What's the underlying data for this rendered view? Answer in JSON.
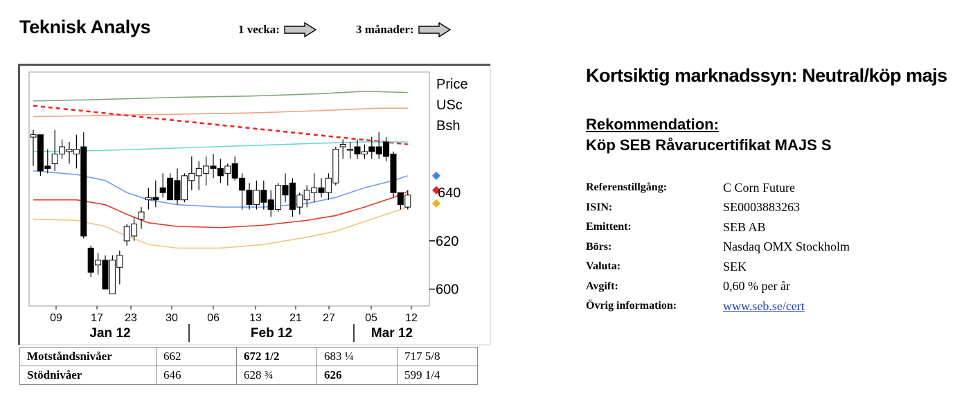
{
  "header": {
    "title": "Teknisk Analys",
    "period_1": "1 vecka:",
    "period_2": "3 månader:"
  },
  "chart_data": {
    "type": "candlestick",
    "unit_label": [
      "Price",
      "USc",
      "Bsh"
    ],
    "ylim": [
      593,
      690
    ],
    "y_ticks": [
      620,
      600
    ],
    "y_tick_overlap": "640",
    "x_ticks": [
      "09",
      "17",
      "23",
      "30",
      "06",
      "13",
      "21",
      "27",
      "05",
      "12"
    ],
    "x_months": [
      "Jan 12",
      "Feb 12",
      "Mar 12"
    ],
    "grid": false,
    "candles": [
      {
        "o": 663,
        "h": 666,
        "l": 651,
        "c": 664
      },
      {
        "o": 664,
        "h": 664,
        "l": 647,
        "c": 649
      },
      {
        "o": 651,
        "h": 658,
        "l": 648,
        "c": 650
      },
      {
        "o": 652,
        "h": 666,
        "l": 649,
        "c": 656
      },
      {
        "o": 656,
        "h": 662,
        "l": 654,
        "c": 659
      },
      {
        "o": 657,
        "h": 661,
        "l": 652,
        "c": 658
      },
      {
        "o": 656,
        "h": 664,
        "l": 650,
        "c": 658
      },
      {
        "o": 659,
        "h": 665,
        "l": 621,
        "c": 622
      },
      {
        "o": 617,
        "h": 618,
        "l": 605,
        "c": 607
      },
      {
        "o": 610,
        "h": 615,
        "l": 606,
        "c": 612
      },
      {
        "o": 612,
        "h": 614,
        "l": 600,
        "c": 600
      },
      {
        "o": 598,
        "h": 614,
        "l": 598,
        "c": 612
      },
      {
        "o": 609,
        "h": 616,
        "l": 602,
        "c": 614
      },
      {
        "o": 620,
        "h": 627,
        "l": 618,
        "c": 626
      },
      {
        "o": 622,
        "h": 630,
        "l": 620,
        "c": 627
      },
      {
        "o": 629,
        "h": 634,
        "l": 625,
        "c": 632
      },
      {
        "o": 637,
        "h": 642,
        "l": 633,
        "c": 638
      },
      {
        "o": 638,
        "h": 645,
        "l": 634,
        "c": 637
      },
      {
        "o": 642,
        "h": 648,
        "l": 638,
        "c": 640
      },
      {
        "o": 646,
        "h": 648,
        "l": 637,
        "c": 637
      },
      {
        "o": 645,
        "h": 650,
        "l": 635,
        "c": 637
      },
      {
        "o": 637,
        "h": 648,
        "l": 636,
        "c": 647
      },
      {
        "o": 645,
        "h": 655,
        "l": 641,
        "c": 648
      },
      {
        "o": 647,
        "h": 653,
        "l": 641,
        "c": 650
      },
      {
        "o": 648,
        "h": 655,
        "l": 643,
        "c": 651
      },
      {
        "o": 651,
        "h": 656,
        "l": 646,
        "c": 650
      },
      {
        "o": 650,
        "h": 654,
        "l": 644,
        "c": 647
      },
      {
        "o": 648,
        "h": 652,
        "l": 643,
        "c": 651
      },
      {
        "o": 652,
        "h": 655,
        "l": 645,
        "c": 646
      },
      {
        "o": 646,
        "h": 648,
        "l": 633,
        "c": 641
      },
      {
        "o": 641,
        "h": 644,
        "l": 633,
        "c": 635
      },
      {
        "o": 635,
        "h": 645,
        "l": 633,
        "c": 641
      },
      {
        "o": 641,
        "h": 645,
        "l": 633,
        "c": 636
      },
      {
        "o": 637,
        "h": 641,
        "l": 630,
        "c": 633
      },
      {
        "o": 633,
        "h": 644,
        "l": 632,
        "c": 643
      },
      {
        "o": 643,
        "h": 648,
        "l": 636,
        "c": 639
      },
      {
        "o": 644,
        "h": 646,
        "l": 630,
        "c": 633
      },
      {
        "o": 634,
        "h": 640,
        "l": 631,
        "c": 639
      },
      {
        "o": 637,
        "h": 643,
        "l": 634,
        "c": 641
      },
      {
        "o": 640,
        "h": 648,
        "l": 636,
        "c": 642
      },
      {
        "o": 642,
        "h": 646,
        "l": 638,
        "c": 640
      },
      {
        "o": 640,
        "h": 648,
        "l": 637,
        "c": 646
      },
      {
        "o": 644,
        "h": 659,
        "l": 643,
        "c": 658
      },
      {
        "o": 659,
        "h": 662,
        "l": 654,
        "c": 660
      },
      {
        "o": 658,
        "h": 661,
        "l": 654,
        "c": 658
      },
      {
        "o": 659,
        "h": 662,
        "l": 654,
        "c": 656
      },
      {
        "o": 656,
        "h": 660,
        "l": 654,
        "c": 657
      },
      {
        "o": 659,
        "h": 663,
        "l": 654,
        "c": 657
      },
      {
        "o": 659,
        "h": 665,
        "l": 654,
        "c": 656
      },
      {
        "o": 661,
        "h": 663,
        "l": 653,
        "c": 655
      },
      {
        "o": 656,
        "h": 657,
        "l": 638,
        "c": 640
      },
      {
        "o": 640,
        "h": 640,
        "l": 633,
        "c": 635
      },
      {
        "o": 634,
        "h": 641,
        "l": 633,
        "c": 639
      }
    ],
    "lines": [
      {
        "color": "#7fa878",
        "dashed": false,
        "values": [
          [
            0,
            678
          ],
          [
            8,
            678.5
          ],
          [
            20,
            679.5
          ],
          [
            30,
            680
          ],
          [
            40,
            681
          ],
          [
            46,
            682
          ],
          [
            52,
            681.5
          ]
        ]
      },
      {
        "color": "#f0a27a",
        "dashed": false,
        "values": [
          [
            0,
            671.5
          ],
          [
            10,
            672
          ],
          [
            20,
            672.5
          ],
          [
            30,
            673
          ],
          [
            40,
            674
          ],
          [
            48,
            675
          ],
          [
            52,
            675
          ]
        ]
      },
      {
        "color": "#ff1a1a",
        "dashed": true,
        "values": [
          [
            0,
            676
          ],
          [
            52,
            660
          ]
        ]
      },
      {
        "color": "#6fd6d0",
        "dashed": false,
        "values": [
          [
            0,
            657
          ],
          [
            10,
            657.5
          ],
          [
            20,
            658.5
          ],
          [
            30,
            659.5
          ],
          [
            40,
            660.5
          ],
          [
            46,
            661
          ],
          [
            52,
            661
          ]
        ]
      },
      {
        "color": "#6f9ef0",
        "dashed": false,
        "values": [
          [
            0,
            649
          ],
          [
            6,
            647.5
          ],
          [
            10,
            645
          ],
          [
            13,
            640
          ],
          [
            16,
            637
          ],
          [
            20,
            635
          ],
          [
            26,
            634
          ],
          [
            32,
            634
          ],
          [
            38,
            635.5
          ],
          [
            42,
            638
          ],
          [
            46,
            642
          ],
          [
            50,
            645
          ],
          [
            52,
            647
          ]
        ]
      },
      {
        "color": "#e43a2a",
        "dashed": false,
        "values": [
          [
            0,
            637
          ],
          [
            6,
            637
          ],
          [
            10,
            635
          ],
          [
            13,
            631
          ],
          [
            16,
            627.5
          ],
          [
            20,
            626
          ],
          [
            26,
            625.5
          ],
          [
            32,
            626.5
          ],
          [
            38,
            628.5
          ],
          [
            42,
            630.5
          ],
          [
            46,
            634
          ],
          [
            50,
            638
          ],
          [
            52,
            640.5
          ]
        ]
      },
      {
        "color": "#f5c27a",
        "dashed": false,
        "values": [
          [
            0,
            629
          ],
          [
            6,
            628.5
          ],
          [
            10,
            626
          ],
          [
            13,
            622
          ],
          [
            16,
            618.5
          ],
          [
            20,
            617
          ],
          [
            26,
            617
          ],
          [
            32,
            618.5
          ],
          [
            38,
            621.5
          ],
          [
            42,
            624
          ],
          [
            46,
            628
          ],
          [
            50,
            632
          ],
          [
            52,
            634
          ]
        ]
      }
    ],
    "markers": [
      {
        "shape": "diamond",
        "color": "#4a7fe6",
        "value": 647
      },
      {
        "shape": "diamond",
        "color": "#ee2222",
        "value": 641
      },
      {
        "shape": "diamond",
        "color": "#f0b020",
        "value": 635.5
      }
    ]
  },
  "levels": {
    "rows": [
      {
        "label": "Motståndsnivåer",
        "values": [
          "662",
          "672 1/2",
          "683 ¼",
          "717 5/8"
        ],
        "bold_index": 1
      },
      {
        "label": "Stödnivåer",
        "values": [
          "646",
          "628 ¾",
          "626",
          "599 1/4"
        ],
        "bold_index": 2
      }
    ]
  },
  "right": {
    "headline": "Kortsiktig marknadssyn: Neutral/köp majs",
    "rec_heading": "Rekommendation:",
    "rec_value": "Köp SEB Råvarucertifikat MAJS S",
    "info": [
      {
        "key": "Referenstillgång:",
        "value": "C Corn Future"
      },
      {
        "key": "ISIN:",
        "value": "SE0003883263"
      },
      {
        "key": "Emittent:",
        "value": "SEB AB"
      },
      {
        "key": "Börs:",
        "value": "Nasdaq OMX Stockholm"
      },
      {
        "key": "Valuta:",
        "value": "SEK"
      },
      {
        "key": "Avgift:",
        "value": "0,60 % per år"
      },
      {
        "key": "Övrig information:",
        "value": "www.seb.se/cert",
        "link": true
      }
    ]
  }
}
